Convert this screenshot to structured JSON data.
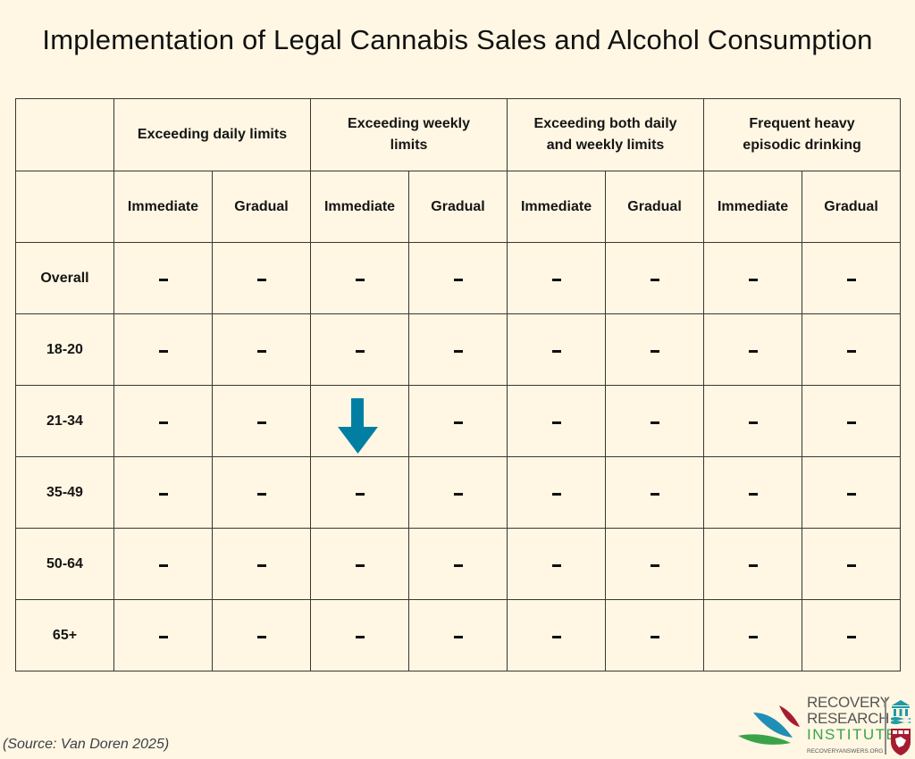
{
  "title": "Implementation of Legal Cannabis Sales and Alcohol Consumption",
  "table": {
    "group_headers": [
      "Exceeding daily limits",
      "Exceeding weekly limits",
      "Exceeding both daily and weekly limits",
      "Frequent heavy episodic drinking"
    ],
    "sub_headers": [
      "Immediate",
      "Gradual",
      "Immediate",
      "Gradual",
      "Immediate",
      "Gradual",
      "Immediate",
      "Gradual"
    ],
    "rows": [
      {
        "label": "Overall",
        "cells": [
          "-",
          "-",
          "-",
          "-",
          "-",
          "-",
          "-",
          "-"
        ]
      },
      {
        "label": "18-20",
        "cells": [
          "-",
          "-",
          "-",
          "-",
          "-",
          "-",
          "-",
          "-"
        ]
      },
      {
        "label": "21-34",
        "cells": [
          "-",
          "-",
          "down-arrow",
          "-",
          "-",
          "-",
          "-",
          "-"
        ]
      },
      {
        "label": "35-49",
        "cells": [
          "-",
          "-",
          "-",
          "-",
          "-",
          "-",
          "-",
          "-"
        ]
      },
      {
        "label": "50-64",
        "cells": [
          "-",
          "-",
          "-",
          "-",
          "-",
          "-",
          "-",
          "-"
        ]
      },
      {
        "label": "65+",
        "cells": [
          "-",
          "-",
          "-",
          "-",
          "-",
          "-",
          "-",
          "-"
        ]
      }
    ]
  },
  "colors": {
    "background": "#fff7e3",
    "border": "#3a3631",
    "arrow": "#007fa3",
    "logo_green": "#3aa34a",
    "logo_blue": "#1f8fb5",
    "logo_red": "#a51c30"
  },
  "source": "(Source: Van Doren 2025)",
  "logo": {
    "line1": "RECOVERY",
    "line2": "RESEARCH",
    "line3": "INSTITUTE",
    "url": "RECOVERYANSWERS.ORG"
  }
}
